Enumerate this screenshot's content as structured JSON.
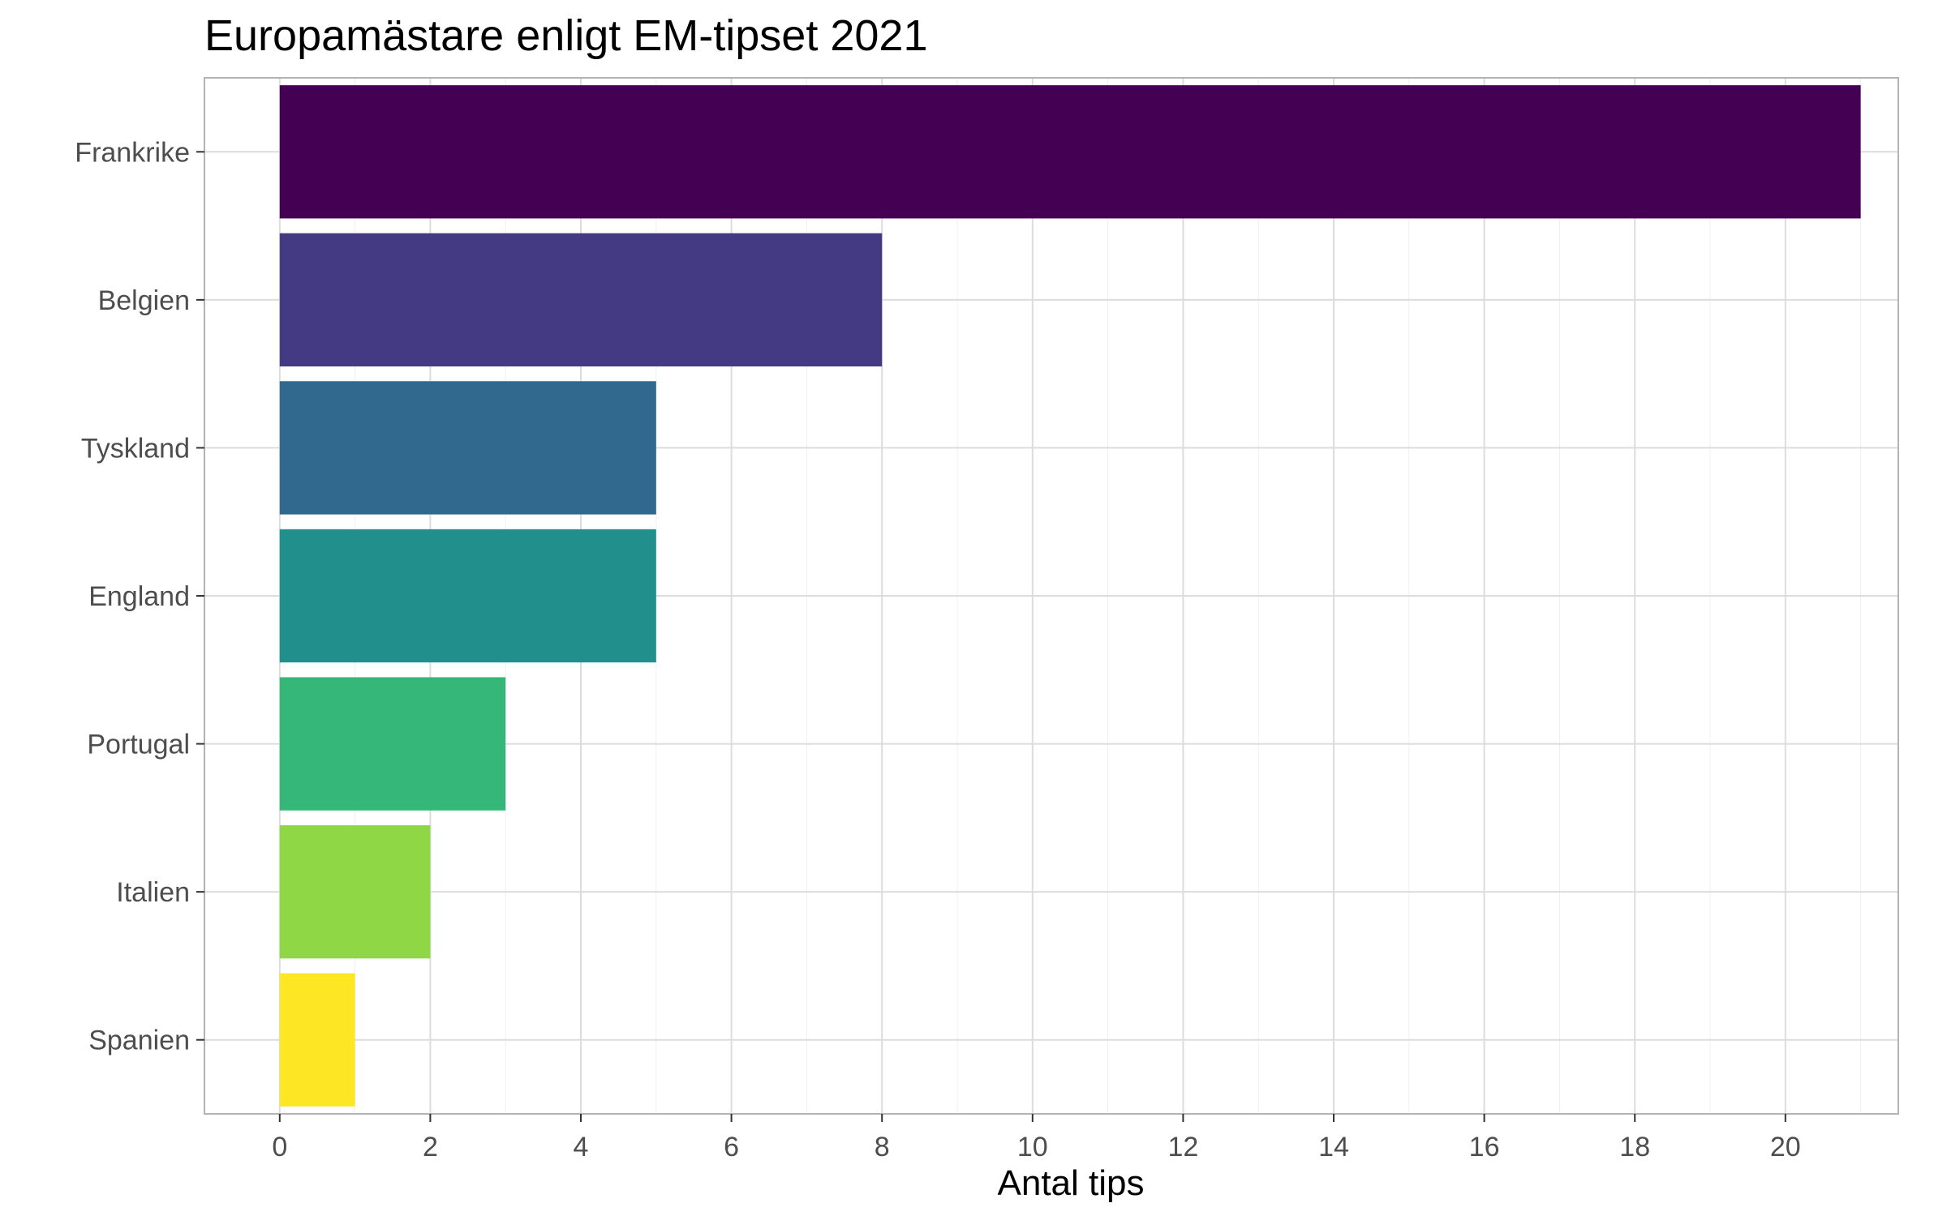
{
  "chart_data": {
    "type": "bar",
    "orientation": "horizontal",
    "title": "Europamästare enligt EM-tipset 2021",
    "xlabel": "Antal tips",
    "ylabel": "",
    "categories": [
      "Frankrike",
      "Belgien",
      "Tyskland",
      "England",
      "Portugal",
      "Italien",
      "Spanien"
    ],
    "values": [
      21,
      8,
      5,
      5,
      3,
      2,
      1
    ],
    "colors": [
      "#440154",
      "#443A83",
      "#31688E",
      "#21908C",
      "#35B779",
      "#8FD744",
      "#FDE725"
    ],
    "xlim": [
      -1,
      21.5
    ],
    "xticks": [
      "0",
      "2",
      "4",
      "6",
      "8",
      "10",
      "12",
      "14",
      "16",
      "18",
      "20"
    ],
    "grid": true,
    "legend": "none"
  }
}
